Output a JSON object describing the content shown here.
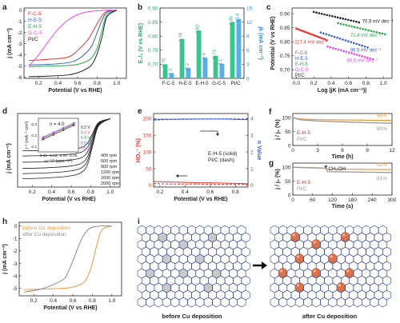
{
  "chart_data": [
    {
      "panel": "a",
      "type": "line",
      "xlabel": "Potential (V vs RHE)",
      "ylabel": "j (mA cm⁻²)",
      "xticks": [
        "0.2",
        "0.4",
        "0.6",
        "0.8",
        "1.0"
      ],
      "yticks": [
        "0",
        "-1",
        "-2",
        "-3",
        "-4",
        "-5",
        "-6"
      ],
      "xlim": [
        0.05,
        1.1
      ],
      "ylim": [
        -6.1,
        0.2
      ],
      "legend": [
        "F-C-5",
        "H-E-5",
        "E-H-5",
        "G-C-5",
        "Pt/C"
      ],
      "series": [
        {
          "name": "F-C-5",
          "color": "#e8332e",
          "x": [
            0.1,
            0.3,
            0.5,
            0.6,
            0.7,
            0.75,
            0.8,
            0.85,
            0.9,
            1.0
          ],
          "y": [
            -4.5,
            -4.4,
            -4.2,
            -3.6,
            -2.7,
            -2.0,
            -1.2,
            -0.5,
            -0.1,
            0
          ]
        },
        {
          "name": "H-E-5",
          "color": "#3a5fcd",
          "x": [
            0.1,
            0.3,
            0.5,
            0.6,
            0.7,
            0.75,
            0.8,
            0.85,
            0.9,
            1.0
          ],
          "y": [
            -4.9,
            -4.85,
            -4.7,
            -4.4,
            -3.7,
            -3.1,
            -2.0,
            -0.9,
            -0.2,
            0
          ]
        },
        {
          "name": "E-H-5",
          "color": "#2aa84a",
          "x": [
            0.1,
            0.3,
            0.5,
            0.6,
            0.7,
            0.75,
            0.8,
            0.85,
            0.9,
            1.0
          ],
          "y": [
            -5.05,
            -5.0,
            -4.95,
            -4.85,
            -4.55,
            -4.2,
            -3.4,
            -1.8,
            -0.4,
            0
          ]
        },
        {
          "name": "G-C-5",
          "color": "#e64de6",
          "x": [
            0.1,
            0.2,
            0.3,
            0.4,
            0.5,
            0.6,
            0.7,
            0.8,
            0.9,
            1.0
          ],
          "y": [
            -5.0,
            -4.0,
            -2.8,
            -1.7,
            -0.9,
            -0.4,
            -0.15,
            -0.05,
            0,
            0
          ]
        },
        {
          "name": "Pt/C",
          "color": "#222222",
          "x": [
            0.1,
            0.3,
            0.5,
            0.6,
            0.7,
            0.75,
            0.8,
            0.85,
            0.9,
            1.0
          ],
          "y": [
            -5.95,
            -5.9,
            -5.8,
            -5.6,
            -5.2,
            -4.8,
            -3.9,
            -2.4,
            -0.6,
            0
          ]
        }
      ]
    },
    {
      "panel": "b",
      "type": "bar",
      "categories": [
        "F-C-5",
        "H-E-5",
        "E-H-5",
        "G-C-5",
        "Pt/C"
      ],
      "ylabel_left": "E₁/₂ (V vs RHE)",
      "ylabel_right": "jk (mA cm⁻²)",
      "ylim_left": [
        0.65,
        0.9
      ],
      "ylim_right": [
        0,
        15
      ],
      "yticks_left": [
        "0.70",
        "0.75",
        "0.80",
        "0.85",
        "0.90"
      ],
      "yticks_right": [
        "0",
        "3",
        "6",
        "9",
        "12",
        "15"
      ],
      "series": [
        {
          "name": "E1/2",
          "axis": "left",
          "color": "#3cc48e",
          "values": [
            0.7,
            0.79,
            0.82,
            0.73,
            0.85
          ],
          "labels": [
            "0.70",
            "0.79",
            "0.82",
            "0.73",
            "0.85"
          ]
        },
        {
          "name": "jk",
          "axis": "right",
          "color": "#5aaee6",
          "values": [
            1.1,
            2.2,
            4.4,
            3.1,
            12.6
          ],
          "labels": [
            "1.1",
            "2.2",
            "4.4",
            "3.1",
            "12.6"
          ]
        }
      ]
    },
    {
      "panel": "c",
      "type": "scatter",
      "xlabel": "Log |jK (mA cm⁻²)|",
      "ylabel": "Potential (V vs RHE)",
      "xticks": [
        "0.0",
        "0.2",
        "0.4",
        "0.6",
        "0.8",
        "1.0"
      ],
      "yticks": [
        "0.70",
        "0.75",
        "0.80",
        "0.85",
        "0.90"
      ],
      "xlim": [
        -0.05,
        1.1
      ],
      "ylim": [
        0.67,
        0.92
      ],
      "legend": [
        "F-C-5",
        "H-E-5",
        "E-H-5",
        "G-C-5",
        "Pt/C"
      ],
      "annotations": [
        "70.9 mV dec⁻¹",
        "72.4 mV dec⁻¹",
        "117.4 mV dec⁻¹",
        "98.5 mV dec⁻¹",
        "86.5 mV dec⁻¹"
      ],
      "series": [
        {
          "name": "Pt/C",
          "color": "#222222",
          "x0": 0.2,
          "x1": 0.72,
          "y0": 0.906,
          "y1": 0.869,
          "label": "70.9 mV dec⁻¹"
        },
        {
          "name": "E-H-5",
          "color": "#2aa84a",
          "x0": 0.48,
          "x1": 1.02,
          "y0": 0.866,
          "y1": 0.827,
          "label": "72.4 mV dec⁻¹"
        },
        {
          "name": "F-C-5",
          "color": "#e8332e",
          "x0": 0.0,
          "x1": 0.35,
          "y0": 0.847,
          "y1": 0.806,
          "label": "117.4 mV dec⁻¹"
        },
        {
          "name": "H-E-5",
          "color": "#3a5fcd",
          "x0": 0.28,
          "x1": 0.82,
          "y0": 0.833,
          "y1": 0.78,
          "label": "98.5 mV dec⁻¹"
        },
        {
          "name": "G-C-5",
          "color": "#e64de6",
          "x0": 0.36,
          "x1": 0.88,
          "y0": 0.783,
          "y1": 0.738,
          "label": "86.5 mV dec⁻¹"
        }
      ]
    },
    {
      "panel": "d",
      "type": "line",
      "xlabel": "Potential (V vs RHE)",
      "ylabel": "j (mA cm⁻²)",
      "xticks": [
        "0.2",
        "0.4",
        "0.6",
        "0.8",
        "1.0"
      ],
      "xlim": [
        0.05,
        1.1
      ],
      "series_labels": [
        "400 rpm",
        "600 rpm",
        "900 rpm",
        "1200 rpm",
        "1600 rpm",
        "2000 rpm"
      ],
      "plateaus": [
        -3.1,
        -3.6,
        -4.2,
        -4.8,
        -5.3,
        -5.8
      ],
      "inset": {
        "xlabel": "ω⁻¹/² (rpm⁻¹/²)",
        "ylabel": "j⁻¹ (mA⁻¹ cm²)",
        "annotation": "n = 4.0",
        "xticks": [
          "0.02",
          "0.03",
          "0.04",
          "0.05"
        ],
        "yticks": [
          "0.1",
          "0.2",
          "0.3"
        ],
        "legend": [
          "0.2 V",
          "0.3 V",
          "0.4 V",
          "0.5 V",
          "0.6 V"
        ],
        "legend_colors": [
          "#222222",
          "#e8332e",
          "#2aa84a",
          "#3a5fcd",
          "#e64de6"
        ]
      }
    },
    {
      "panel": "e",
      "type": "line",
      "xlabel": "Potential (V vs RHE)",
      "ylabel_left": "HO₂⁻ (%)",
      "ylabel_right": "n Value",
      "xticks": [
        "0.2",
        "0.4",
        "0.6",
        "0.8"
      ],
      "yticks_left": [
        "0",
        "50",
        "100",
        "150",
        "200"
      ],
      "yticks_right": [
        "0",
        "1",
        "2",
        "3",
        "4"
      ],
      "xlim": [
        0.15,
        0.9
      ],
      "annotation": [
        "E-H-5 (solid)",
        "Pt/C (dash)"
      ],
      "series": [
        {
          "name": "E-H-5 HO2-",
          "color": "#e8332e",
          "dash": false,
          "x": [
            0.15,
            0.2,
            0.3,
            0.4,
            0.5,
            0.6,
            0.7,
            0.8,
            0.9
          ],
          "y": [
            12,
            11,
            10,
            9,
            8,
            8,
            7,
            6,
            5
          ]
        },
        {
          "name": "Pt/C HO2-",
          "color": "#e8332e",
          "dash": true,
          "x": [
            0.15,
            0.2,
            0.3,
            0.4,
            0.5,
            0.6,
            0.7,
            0.8,
            0.9
          ],
          "y": [
            6,
            5,
            4,
            4,
            4,
            3,
            3,
            3,
            3
          ]
        },
        {
          "name": "E-H-5 n",
          "color": "#3a5fcd",
          "dash": false,
          "x": [
            0.15,
            0.2,
            0.3,
            0.4,
            0.5,
            0.6,
            0.7,
            0.8,
            0.9
          ],
          "y": [
            3.95,
            3.96,
            3.96,
            3.97,
            3.97,
            3.98,
            3.97,
            3.95,
            3.93
          ]
        },
        {
          "name": "Pt/C n",
          "color": "#3a5fcd",
          "dash": true,
          "x": [
            0.15,
            0.2,
            0.3,
            0.4,
            0.5,
            0.6,
            0.7,
            0.8,
            0.9
          ],
          "y": [
            3.9,
            3.92,
            3.94,
            3.95,
            3.96,
            3.97,
            3.98,
            3.98,
            3.97
          ]
        }
      ]
    },
    {
      "panel": "f",
      "type": "line",
      "xlabel": "Time (h)",
      "ylabel": "j / j₀ (%)",
      "xticks": [
        "0",
        "3",
        "6",
        "9",
        "12"
      ],
      "yticks": [
        "0",
        "50",
        "100"
      ],
      "xlim": [
        0,
        12
      ],
      "ylim": [
        0,
        115
      ],
      "legend": [
        "E-H-5",
        "Pt/C"
      ],
      "end_labels": [
        "90%",
        "80%"
      ],
      "series": [
        {
          "name": "E-H-5",
          "color": "#f09a3e",
          "x": [
            0,
            1,
            3,
            6,
            9,
            12
          ],
          "y": [
            100,
            95,
            93,
            92,
            91,
            90
          ]
        },
        {
          "name": "Pt/C",
          "color": "#999999",
          "x": [
            0,
            1,
            3,
            6,
            9,
            12
          ],
          "y": [
            100,
            92,
            88,
            85,
            82,
            80
          ]
        }
      ]
    },
    {
      "panel": "g",
      "type": "line",
      "xlabel": "Time (s)",
      "ylabel": "j / j₀ (%)",
      "xticks": [
        "0",
        "60",
        "120",
        "180",
        "240",
        "300"
      ],
      "yticks": [
        "0",
        "50",
        "100"
      ],
      "xlim": [
        0,
        300
      ],
      "ylim": [
        0,
        115
      ],
      "annotation": "CH₃OH",
      "legend": [
        "E-H-5",
        "Pt/C"
      ],
      "end_labels": [
        "92%",
        "81%"
      ],
      "series": [
        {
          "name": "E-H-5",
          "color": "#f09a3e",
          "x": [
            0,
            60,
            100,
            105,
            180,
            240,
            300
          ],
          "y": [
            100,
            98,
            97,
            93,
            93,
            92,
            92
          ]
        },
        {
          "name": "Pt/C",
          "color": "#999999",
          "x": [
            0,
            60,
            100,
            105,
            180,
            240,
            300
          ],
          "y": [
            100,
            98,
            97,
            84,
            83,
            82,
            81
          ]
        }
      ]
    },
    {
      "panel": "h",
      "type": "line",
      "xlabel": "Potential (V vs RHE)",
      "ylabel": "j (mA cm⁻²)",
      "xticks": [
        "0.2",
        "0.4",
        "0.6",
        "0.8",
        "1.0"
      ],
      "yticks": [
        "0",
        "-1",
        "-2",
        "-3",
        "-4",
        "-5"
      ],
      "xlim": [
        0.05,
        1.1
      ],
      "ylim": [
        -5.6,
        0.3
      ],
      "legend": [
        "before Cu deposition",
        "after Cu deposition"
      ],
      "series": [
        {
          "name": "before Cu deposition",
          "color": "#f09a3e",
          "x": [
            0.1,
            0.3,
            0.5,
            0.6,
            0.7,
            0.75,
            0.8,
            0.85,
            0.9,
            1.0
          ],
          "y": [
            -5.1,
            -5.05,
            -5.0,
            -4.9,
            -4.6,
            -4.1,
            -3.0,
            -1.4,
            -0.3,
            0
          ]
        },
        {
          "name": "after Cu deposition",
          "color": "#8c8c8c",
          "x": [
            0.1,
            0.3,
            0.5,
            0.55,
            0.6,
            0.65,
            0.7,
            0.75,
            0.8,
            0.9,
            1.0
          ],
          "y": [
            -5.3,
            -5.0,
            -4.3,
            -3.7,
            -2.8,
            -1.8,
            -0.9,
            -0.35,
            -0.1,
            0,
            0
          ]
        }
      ]
    }
  ],
  "panel_i": {
    "before_label": "before Cu deposition",
    "after_label": "after Cu deposition"
  },
  "panel_letters": [
    "a",
    "b",
    "c",
    "d",
    "e",
    "f",
    "g",
    "h",
    "i"
  ],
  "colors": {
    "axis": "#222222",
    "grey_defect": "#c9c9c9",
    "lattice": "#2d3a8c",
    "cu_sphere": "#d9724a"
  }
}
